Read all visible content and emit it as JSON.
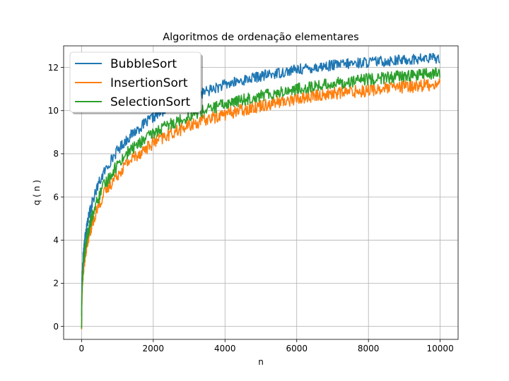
{
  "chart_data": {
    "type": "line",
    "title": "Algoritmos de ordenação elementares",
    "xlabel": "n",
    "ylabel": "q ( n )",
    "xlim": [
      -500,
      10500
    ],
    "ylim": [
      -0.6,
      13.0
    ],
    "xticks": [
      0,
      2000,
      4000,
      6000,
      8000,
      10000
    ],
    "yticks": [
      0,
      2,
      4,
      6,
      8,
      10,
      12
    ],
    "grid": true,
    "legend_position": "top-left",
    "series": [
      {
        "name": "BubbleSort",
        "color": "#1f77b4",
        "x": [
          1,
          10,
          25,
          50,
          100,
          150,
          200,
          300,
          400,
          500,
          600,
          800,
          1000,
          1250,
          1500,
          2000,
          2500,
          3000,
          3500,
          4000,
          5000,
          6000,
          7000,
          8000,
          9000,
          10000
        ],
        "y": [
          0.6,
          2.0,
          2.8,
          3.4,
          4.2,
          4.7,
          5.1,
          5.75,
          6.25,
          6.7,
          7.05,
          7.65,
          8.15,
          8.65,
          9.05,
          9.7,
          10.2,
          10.6,
          10.9,
          11.2,
          11.6,
          11.9,
          12.1,
          12.25,
          12.35,
          12.45
        ],
        "noise": 0.25
      },
      {
        "name": "InsertionSort",
        "color": "#ff7f0e",
        "x": [
          1,
          10,
          25,
          50,
          100,
          150,
          200,
          300,
          400,
          500,
          600,
          800,
          1000,
          1250,
          1500,
          2000,
          2500,
          3000,
          3500,
          4000,
          5000,
          6000,
          7000,
          8000,
          9000,
          10000
        ],
        "y": [
          0.0,
          1.3,
          1.9,
          2.6,
          3.3,
          3.8,
          4.2,
          4.8,
          5.3,
          5.7,
          6.05,
          6.6,
          7.05,
          7.55,
          7.9,
          8.5,
          8.95,
          9.3,
          9.6,
          9.85,
          10.25,
          10.55,
          10.8,
          10.95,
          11.1,
          11.25
        ],
        "noise": 0.3
      },
      {
        "name": "SelectionSort",
        "color": "#2ca02c",
        "x": [
          1,
          10,
          25,
          50,
          100,
          150,
          200,
          300,
          400,
          500,
          600,
          800,
          1000,
          1250,
          1500,
          2000,
          2500,
          3000,
          3500,
          4000,
          5000,
          6000,
          7000,
          8000,
          9000,
          10000
        ],
        "y": [
          0.0,
          1.5,
          2.2,
          2.9,
          3.6,
          4.1,
          4.5,
          5.15,
          5.65,
          6.05,
          6.45,
          7.0,
          7.5,
          8.0,
          8.35,
          8.95,
          9.4,
          9.75,
          10.05,
          10.3,
          10.7,
          11.0,
          11.25,
          11.45,
          11.6,
          11.75
        ],
        "noise": 0.28
      }
    ]
  }
}
